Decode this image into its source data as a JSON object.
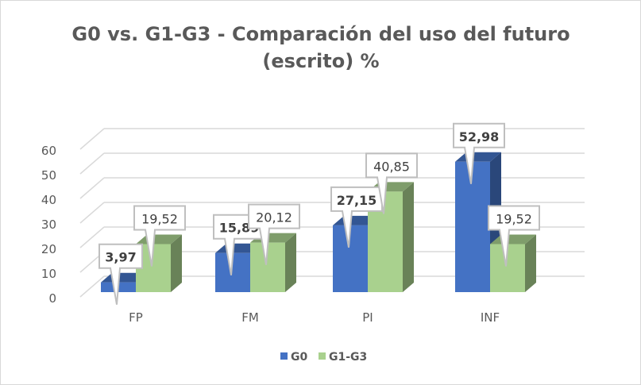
{
  "chart_data": {
    "type": "bar",
    "title_lines": [
      "G0 vs. G1-G3 - Comparación del uso del futuro",
      "(escrito) %"
    ],
    "categories": [
      "FP",
      "FM",
      "PI",
      "INF"
    ],
    "series": [
      {
        "name": "G0",
        "values": [
          3.97,
          15.89,
          27.15,
          52.98
        ],
        "labels": [
          "3,97",
          "15,89",
          "27,15",
          "52,98"
        ],
        "color": "#4472c4",
        "label_bold": true
      },
      {
        "name": "G1-G3",
        "values": [
          19.52,
          20.12,
          40.85,
          19.52
        ],
        "labels": [
          "19,52",
          "20,12",
          "40,85",
          "19,52"
        ],
        "color": "#a9d18e",
        "label_bold": false
      }
    ],
    "ylim": [
      0,
      60
    ],
    "yticks": [
      0,
      10,
      20,
      30,
      40,
      50,
      60
    ],
    "grid": true,
    "legend": "bottom",
    "style": "3d-clustered-column"
  }
}
